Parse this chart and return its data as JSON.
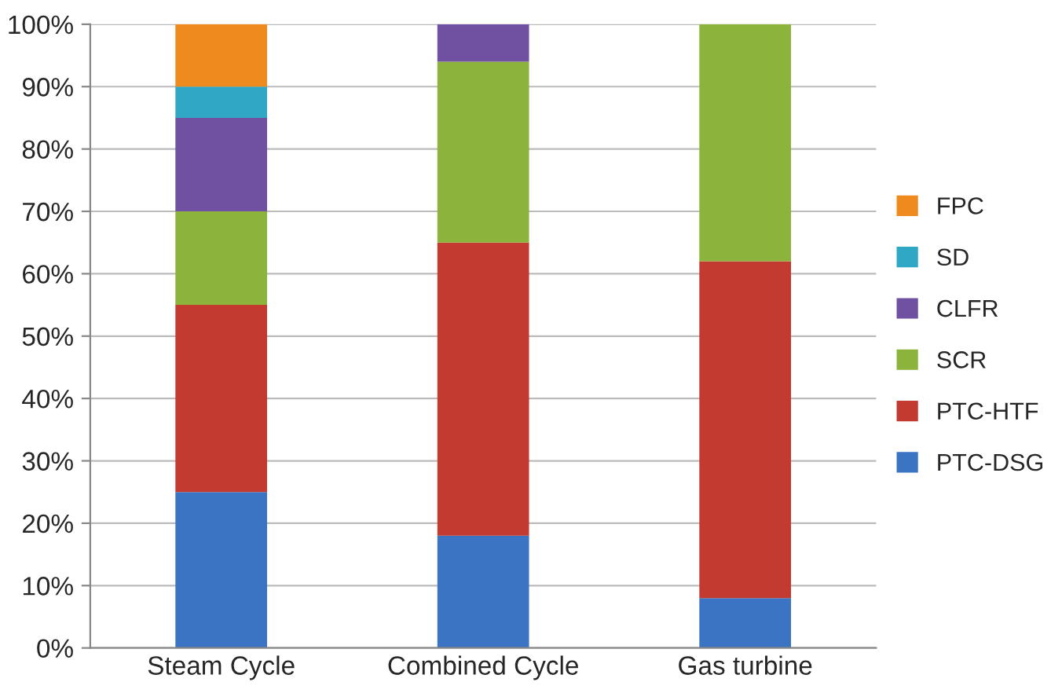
{
  "chart_data": {
    "type": "bar",
    "stacked": true,
    "categories": [
      "Steam Cycle",
      "Combined Cycle",
      "Gas turbine"
    ],
    "series": [
      {
        "name": "PTC-DSG",
        "color": "#3b74c2",
        "values": [
          25,
          18,
          8
        ]
      },
      {
        "name": "PTC-HTF",
        "color": "#c23a30",
        "values": [
          30,
          47,
          54
        ]
      },
      {
        "name": "SCR",
        "color": "#8cb33b",
        "values": [
          15,
          29,
          38
        ]
      },
      {
        "name": "CLFR",
        "color": "#7050a0",
        "values": [
          15,
          6,
          0
        ]
      },
      {
        "name": "SD",
        "color": "#2fa7c5",
        "values": [
          5,
          0,
          0
        ]
      },
      {
        "name": "FPC",
        "color": "#ef8a1f",
        "values": [
          10,
          0,
          0
        ]
      }
    ],
    "ylim": [
      0,
      100
    ],
    "yticks": [
      {
        "value": 0,
        "label": "0%"
      },
      {
        "value": 10,
        "label": "10%"
      },
      {
        "value": 20,
        "label": "20%"
      },
      {
        "value": 30,
        "label": "30%"
      },
      {
        "value": 40,
        "label": "40%"
      },
      {
        "value": 50,
        "label": "50%"
      },
      {
        "value": 60,
        "label": "60%"
      },
      {
        "value": 70,
        "label": "70%"
      },
      {
        "value": 80,
        "label": "80%"
      },
      {
        "value": 90,
        "label": "90%"
      },
      {
        "value": 100,
        "label": "100%"
      }
    ],
    "grid": "y",
    "legend": "right"
  }
}
